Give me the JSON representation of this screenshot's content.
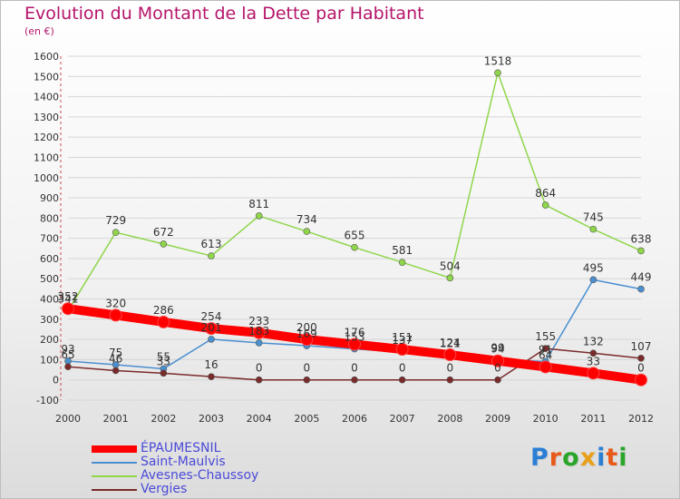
{
  "brand": {
    "name": "Proxiti",
    "letters": [
      "P",
      "r",
      "o",
      "x",
      "i",
      "t",
      "i"
    ],
    "letter_colors": [
      "#2a7fd4",
      "#e85a1a",
      "#2aa52a",
      "#e8a01a",
      "#2a7fd4",
      "#e85a1a",
      "#2aa52a"
    ]
  },
  "chart_data": {
    "type": "line",
    "title": "Evolution du Montant de la Dette par Habitant",
    "subtitle": "(en €)",
    "x": [
      "2000",
      "2001",
      "2002",
      "2003",
      "2004",
      "2005",
      "2006",
      "2007",
      "2008",
      "2009",
      "2010",
      "2011",
      "2012"
    ],
    "ylim": [
      -100,
      1600
    ],
    "yticks": [
      -100,
      0,
      100,
      200,
      300,
      400,
      500,
      600,
      700,
      800,
      900,
      1000,
      1100,
      1200,
      1300,
      1400,
      1500,
      1600
    ],
    "grid": true,
    "legend_position": "bottom-left",
    "series": [
      {
        "name": "ÉPAUMESNIL",
        "color": "#ff0000",
        "values": [
          352,
          320,
          286,
          254,
          233,
          200,
          176,
          151,
          124,
          94,
          64,
          33,
          0
        ],
        "labels": [
          "352",
          "320",
          "286",
          "254",
          "233",
          "200",
          "176",
          "151",
          "124",
          "94",
          "64",
          "33",
          "0"
        ]
      },
      {
        "name": "Saint-Maulvis",
        "color": "#4a8fd0",
        "values": [
          93,
          75,
          55,
          201,
          183,
          169,
          153,
          137,
          121,
          99,
          91,
          495,
          449
        ],
        "labels": [
          "93",
          "75",
          "55",
          "201",
          "183",
          "169",
          "153",
          "137",
          "121",
          "99",
          "91",
          "495",
          "449"
        ]
      },
      {
        "name": "Avesnes-Chaussoy",
        "color": "#8fd64a",
        "values": [
          341,
          729,
          672,
          613,
          811,
          734,
          655,
          581,
          504,
          1518,
          864,
          745,
          638
        ],
        "labels": [
          "341",
          "729",
          "672",
          "613",
          "811",
          "734",
          "655",
          "581",
          "504",
          "1518",
          "864",
          "745",
          "638"
        ]
      },
      {
        "name": "Vergies",
        "color": "#7a2a2a",
        "values": [
          65,
          46,
          33,
          16,
          0,
          0,
          0,
          0,
          0,
          0,
          155,
          132,
          107
        ],
        "labels": [
          "65",
          "46",
          "33",
          "16",
          "0",
          "0",
          "0",
          "0",
          "0",
          "0",
          "155",
          "132",
          "107"
        ]
      }
    ]
  }
}
